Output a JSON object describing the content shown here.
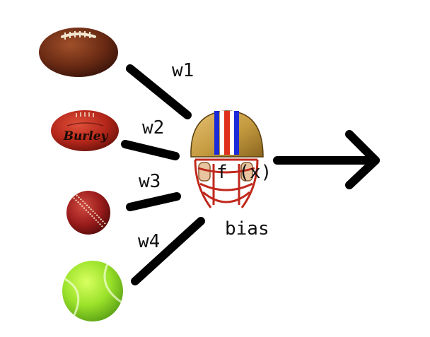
{
  "diagram": {
    "inputs": [
      {
        "name": "american-football",
        "weight": "w1"
      },
      {
        "name": "aussie-rules-football",
        "weight": "w2",
        "brand": "Burley"
      },
      {
        "name": "cricket-ball",
        "weight": "w3"
      },
      {
        "name": "tennis-ball",
        "weight": "w4"
      }
    ],
    "neuron": {
      "label": "f (x)",
      "icon": "football-helmet-icon"
    },
    "bias_label": "bias",
    "output": {
      "icon": "arrow-right-icon"
    }
  },
  "colors": {
    "stroke": "#000000",
    "helmet_gold": "#c49a3f",
    "helmet_red": "#e0301e",
    "helmet_blue": "#1b2bd8",
    "football_brown": "#6b2b14",
    "aussie_red": "#b3261a",
    "cricket_red": "#9a1c1c",
    "tennis_green": "#9be22a"
  }
}
